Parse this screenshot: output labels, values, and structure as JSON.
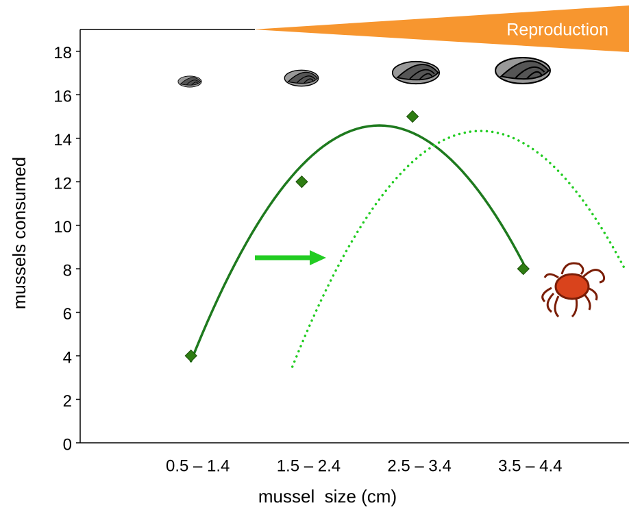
{
  "chart_data": {
    "type": "scatter",
    "annotation": "Reproduction",
    "x_label": "mussel  size (cm)",
    "y_label": "mussels consumed",
    "categories": [
      "0.5 – 1.4",
      "1.5 – 2.4",
      "2.5 – 3.4",
      "3.5 – 4.4"
    ],
    "values": [
      4,
      12,
      15,
      8
    ],
    "color": "#2e7d12",
    "fit_color": "#1e7a1e",
    "shifted_fit_color": "#22cc22",
    "ylim": [
      0,
      19
    ],
    "yticks": [
      0,
      2,
      4,
      6,
      8,
      10,
      12,
      14,
      16,
      18
    ]
  }
}
